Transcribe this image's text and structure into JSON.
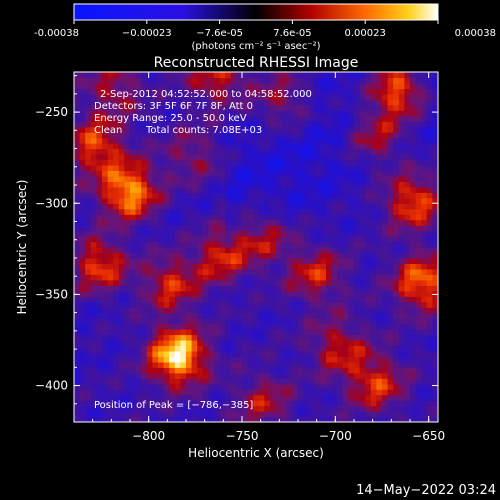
{
  "chart_data": {
    "type": "heatmap",
    "title": "Reconstructed RHESSI Image",
    "xlabel": "Heliocentric X (arcsec)",
    "ylabel": "Heliocentric Y (arcsec)",
    "xlim": [
      -840,
      -645
    ],
    "ylim": [
      -420,
      -228
    ],
    "xticks": [
      -800,
      -750,
      -700,
      -650
    ],
    "yticks": [
      -250,
      -300,
      -350,
      -400
    ],
    "xtick_labels": [
      "−800",
      "−750",
      "−700",
      "−650"
    ],
    "ytick_labels": [
      "−250",
      "−300",
      "−350",
      "−400"
    ],
    "colorbar": {
      "min": -0.00038,
      "max": 0.00038,
      "tick_labels": [
        "-0.00038",
        "−0.00023",
        "−7.6e-05",
        "7.6e-05",
        "0.00023",
        "0.00038"
      ],
      "unit": "(photons cm⁻² s⁻¹ asec⁻²)"
    },
    "annotations": {
      "time": "2-Sep-2012 04:52:52.000 to 04:58:52.000",
      "detectors": "Detectors: 3F 5F 6F 7F 8F, Att 0",
      "energy": "Energy Range: 25.0 - 50.0 keV",
      "clean": "Clean",
      "counts": "Total counts: 7.08E+03",
      "peak": "Position of Peak = [−786,−385]"
    },
    "peak": {
      "x": -786,
      "y": -385
    },
    "grid": false,
    "legend": "none",
    "sources": [
      {
        "x": -786,
        "y": -385,
        "amp": 1.0
      },
      {
        "x": -812,
        "y": -295,
        "amp": 0.85
      },
      {
        "x": -830,
        "y": -270,
        "amp": 0.6
      },
      {
        "x": -828,
        "y": -335,
        "amp": 0.65
      },
      {
        "x": -762,
        "y": -330,
        "amp": 0.55
      },
      {
        "x": -790,
        "y": -345,
        "amp": 0.55
      },
      {
        "x": -740,
        "y": -320,
        "amp": 0.45
      },
      {
        "x": -712,
        "y": -340,
        "amp": 0.5
      },
      {
        "x": -668,
        "y": -240,
        "amp": 0.8
      },
      {
        "x": -660,
        "y": -300,
        "amp": 0.65
      },
      {
        "x": -655,
        "y": -345,
        "amp": 0.7
      },
      {
        "x": -680,
        "y": -400,
        "amp": 0.55
      },
      {
        "x": -700,
        "y": -380,
        "amp": 0.45
      },
      {
        "x": -740,
        "y": -410,
        "amp": 0.4
      },
      {
        "x": -765,
        "y": -232,
        "amp": 0.5
      },
      {
        "x": -730,
        "y": -245,
        "amp": 0.4
      },
      {
        "x": -820,
        "y": -238,
        "amp": 0.4
      },
      {
        "x": -778,
        "y": -275,
        "amp": 0.35
      },
      {
        "x": -680,
        "y": -265,
        "amp": 0.5
      }
    ]
  },
  "footer": {
    "datestamp": "14−May−2022 03:24"
  }
}
